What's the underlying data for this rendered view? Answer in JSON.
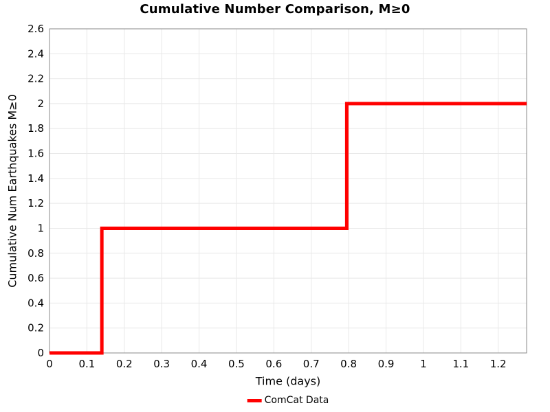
{
  "chart_data": {
    "type": "line",
    "title": "Cumulative Number Comparison, M≥0",
    "xlabel": "Time (days)",
    "ylabel": "Cumulative Num Earthquakes M≥0",
    "xlim": [
      0,
      1.276
    ],
    "ylim": [
      0,
      2.6
    ],
    "xticks": {
      "values": [
        0,
        0.1,
        0.2,
        0.3,
        0.4,
        0.5,
        0.6,
        0.7,
        0.8,
        0.9,
        1.0,
        1.1,
        1.2
      ],
      "labels": [
        "0",
        "0.1",
        "0.2",
        "0.3",
        "0.4",
        "0.5",
        "0.6",
        "0.7",
        "0.8",
        "0.9",
        "1",
        "1.1",
        "1.2"
      ]
    },
    "yticks": {
      "values": [
        0,
        0.2,
        0.4,
        0.6,
        0.8,
        1.0,
        1.2,
        1.4,
        1.6,
        1.8,
        2.0,
        2.2,
        2.4,
        2.6
      ],
      "labels": [
        "0",
        "0.2",
        "0.4",
        "0.6",
        "0.8",
        "1",
        "1.2",
        "1.4",
        "1.6",
        "1.8",
        "2",
        "2.2",
        "2.4",
        "2.6"
      ]
    },
    "grid": true,
    "legend": {
      "position": "below-chart",
      "entries": [
        {
          "label": "ComCat Data",
          "color": "#ff0000"
        }
      ]
    },
    "series": [
      {
        "name": "ComCat Data",
        "color": "#ff0000",
        "line_width": 5,
        "drawstyle": "steps-post",
        "extend_to_xmax": true,
        "x": [
          0,
          0.14,
          0.795
        ],
        "y": [
          0,
          1,
          2
        ]
      }
    ]
  },
  "colors": {
    "line": "#ff0000",
    "grid": "#e8e8e8",
    "frame": "#8a8a8a",
    "text": "#000000",
    "background": "#ffffff"
  }
}
